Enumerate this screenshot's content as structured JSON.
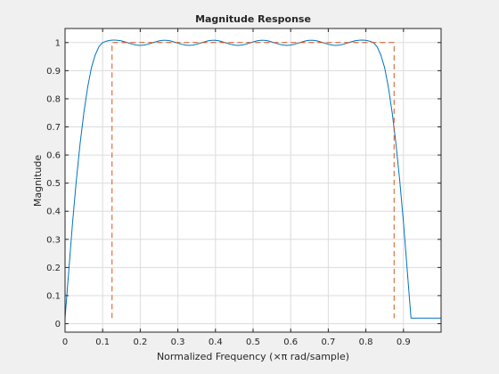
{
  "chart_data": {
    "type": "line",
    "title": "Magnitude Response",
    "xlabel": "Normalized Frequency (×π rad/sample)",
    "ylabel": "Magnitude",
    "xlim": [
      0,
      1
    ],
    "ylim": [
      -0.03,
      1.05
    ],
    "xticks": [
      0,
      0.1,
      0.2,
      0.3,
      0.4,
      0.5,
      0.6,
      0.7,
      0.8,
      0.9
    ],
    "xtick_labels": [
      "0",
      "0.1",
      "0.2",
      "0.3",
      "0.4",
      "0.5",
      "0.6",
      "0.7",
      "0.8",
      "0.9"
    ],
    "yticks": [
      0,
      0.1,
      0.2,
      0.3,
      0.4,
      0.5,
      0.6,
      0.7,
      0.8,
      0.9,
      1
    ],
    "ytick_labels": [
      "0",
      "0.1",
      "0.2",
      "0.3",
      "0.4",
      "0.5",
      "0.6",
      "0.7",
      "0.8",
      "0.9",
      "1"
    ],
    "grid": true,
    "series": [
      {
        "color": "#0072bd",
        "x": [
          0,
          0.01,
          0.02,
          0.03,
          0.04,
          0.05,
          0.06,
          0.07,
          0.08,
          0.09,
          0.1,
          0.11,
          0.12,
          0.13,
          0.14,
          0.15,
          0.16,
          0.17,
          0.18,
          0.19,
          0.2,
          0.21,
          0.22,
          0.23,
          0.24,
          0.25,
          0.26,
          0.27,
          0.28,
          0.29,
          0.3,
          0.31,
          0.32,
          0.33,
          0.34,
          0.35,
          0.36,
          0.37,
          0.38,
          0.39,
          0.4,
          0.41,
          0.42,
          0.43,
          0.44,
          0.45,
          0.46,
          0.47,
          0.48,
          0.49,
          0.5,
          0.51,
          0.52,
          0.53,
          0.54,
          0.55,
          0.56,
          0.57,
          0.58,
          0.59,
          0.6,
          0.61,
          0.62,
          0.63,
          0.64,
          0.65,
          0.66,
          0.67,
          0.68,
          0.69,
          0.7,
          0.71,
          0.72,
          0.73,
          0.74,
          0.75,
          0.76,
          0.77,
          0.78,
          0.79,
          0.8,
          0.81,
          0.82,
          0.83,
          0.84,
          0.85,
          0.86,
          0.87,
          0.88,
          0.89,
          0.9,
          0.91,
          0.92,
          0.93,
          0.94,
          0.95,
          0.96,
          0.97,
          0.98,
          0.99,
          1
        ],
        "y": [
          0.02,
          0.19,
          0.36,
          0.51,
          0.64,
          0.75,
          0.84,
          0.91,
          0.955,
          0.985,
          1.0,
          1.005,
          1.008,
          1.009,
          1.008,
          1.006,
          1.002,
          0.998,
          0.994,
          0.991,
          0.99,
          0.991,
          0.994,
          0.998,
          1.002,
          1.006,
          1.008,
          1.008,
          1.006,
          1.002,
          0.998,
          0.994,
          0.991,
          0.99,
          0.991,
          0.994,
          0.998,
          1.002,
          1.006,
          1.008,
          1.008,
          1.006,
          1.002,
          0.998,
          0.994,
          0.991,
          0.99,
          0.991,
          0.994,
          0.998,
          1.002,
          1.006,
          1.008,
          1.008,
          1.006,
          1.002,
          0.998,
          0.994,
          0.991,
          0.99,
          0.991,
          0.994,
          0.998,
          1.002,
          1.006,
          1.008,
          1.008,
          1.006,
          1.002,
          0.998,
          0.994,
          0.991,
          0.99,
          0.991,
          0.994,
          0.998,
          1.002,
          1.006,
          1.008,
          1.009,
          1.008,
          1.005,
          1.0,
          0.985,
          0.955,
          0.91,
          0.84,
          0.75,
          0.64,
          0.51,
          0.36,
          0.19,
          0.02,
          0.02,
          0.02,
          0.02,
          0.02,
          0.02,
          0.02,
          0.02,
          0.02
        ]
      },
      {
        "color": "#d95319",
        "dash": "dashed",
        "x": [
          0.125,
          0.125,
          0.875,
          0.875
        ],
        "y": [
          0.02,
          1.0,
          1.0,
          0.02
        ]
      }
    ]
  },
  "colors": {
    "figure_background": "#f0f0f0",
    "axes_background": "#ffffff",
    "grid": "#dcdcdc",
    "axis": "#262626"
  }
}
